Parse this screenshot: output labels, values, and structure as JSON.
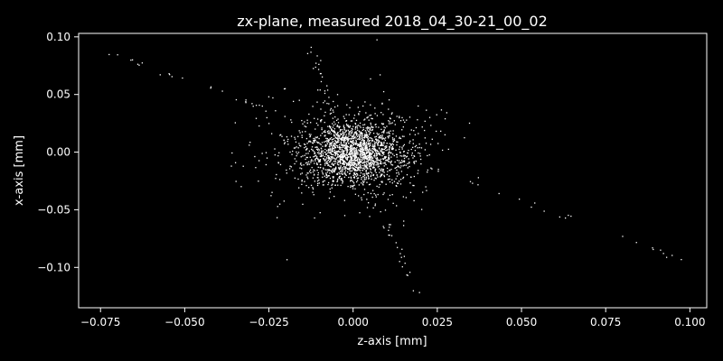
{
  "chart_data": {
    "type": "scatter",
    "title": "zx-plane, measured 2018_04_30-21_00_02",
    "xlabel": "z-axis [mm]",
    "ylabel": "x-axis [mm]",
    "xlim": [
      -0.0815,
      0.105
    ],
    "ylim": [
      -0.135,
      0.103
    ],
    "xticks": [
      -0.075,
      -0.05,
      -0.025,
      0.0,
      0.025,
      0.05,
      0.075,
      0.1
    ],
    "xtick_labels": [
      "−0.075",
      "−0.050",
      "−0.025",
      "0.000",
      "0.025",
      "0.050",
      "0.075",
      "0.100"
    ],
    "yticks": [
      0.1,
      0.05,
      0.0,
      -0.05,
      -0.1
    ],
    "ytick_labels": [
      "0.10",
      "0.05",
      "0.00",
      "−0.05",
      "−0.10"
    ],
    "grid": false,
    "legend": "none",
    "colors": {
      "background": "#000000",
      "points": "#ffffff",
      "axes": "#ffffff"
    },
    "features": {
      "central_cluster": {
        "center": [
          0.0,
          0.0
        ],
        "spread": [
          0.0075,
          0.0135
        ],
        "count": 2200
      },
      "diagonal_streak": {
        "from": [
          -0.073,
          0.088
        ],
        "to": [
          0.097,
          -0.092
        ],
        "count": 60
      },
      "upper_arm": {
        "from": [
          -0.013,
          0.092
        ],
        "to": [
          -0.006,
          0.03
        ],
        "count": 30
      },
      "lower_arm": {
        "from": [
          0.006,
          -0.035
        ],
        "to": [
          0.019,
          -0.123
        ],
        "count": 30
      }
    }
  }
}
